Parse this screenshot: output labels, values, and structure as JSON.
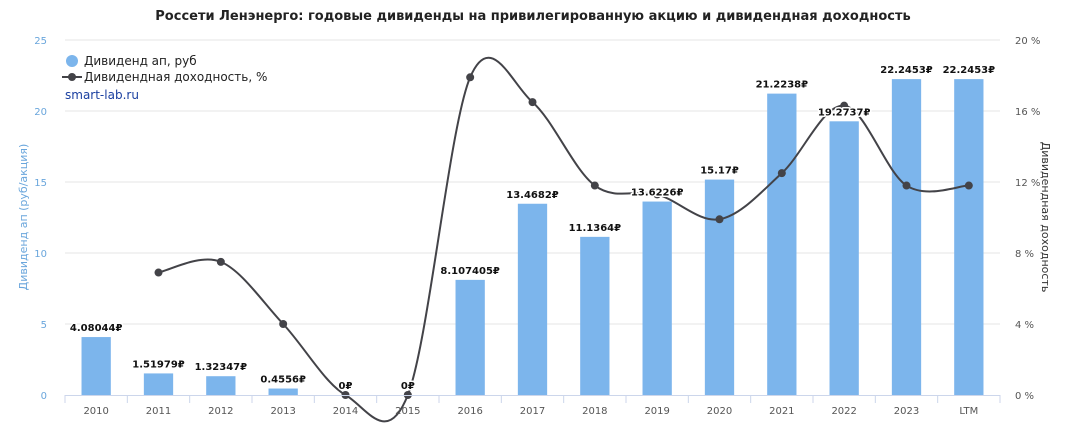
{
  "chart_data": {
    "type": "bar",
    "title": "Россети Ленэнерго: годовые дивиденды на привилегированную акцию и дивидендная доходность",
    "source_label": "smart-lab.ru",
    "categories": [
      "2010",
      "2011",
      "2012",
      "2013",
      "2014",
      "2015",
      "2016",
      "2017",
      "2018",
      "2019",
      "2020",
      "2021",
      "2022",
      "2023",
      "LTM"
    ],
    "series": [
      {
        "name": "Дивиденд ап, руб",
        "type": "bar",
        "axis": "left",
        "color": "#7cb5ec",
        "values": [
          4.08044,
          1.51979,
          1.32347,
          0.4556,
          0,
          0,
          8.107405,
          13.4682,
          11.1364,
          13.6226,
          15.17,
          21.2238,
          19.2737,
          22.2453,
          22.2453
        ],
        "labels": [
          "4.08044₽",
          "1.51979₽",
          "1.32347₽",
          "0.4556₽",
          "0₽",
          "0₽",
          "8.107405₽",
          "13.4682₽",
          "11.1364₽",
          "13.6226₽",
          "15.17₽",
          "21.2238₽",
          "19.2737₽",
          "22.2453₽",
          "22.2453₽"
        ]
      },
      {
        "name": "Дивидендная доходность, %",
        "type": "line",
        "axis": "right",
        "color": "#434348",
        "values": [
          null,
          6.9,
          7.5,
          4.0,
          0.0,
          0.0,
          17.9,
          16.5,
          11.8,
          11.3,
          9.9,
          12.5,
          16.3,
          11.8,
          11.8
        ]
      }
    ],
    "yleft": {
      "label": "Дивиденд ап (руб/акция)",
      "min": 0,
      "max": 25,
      "ticks": [
        "0",
        "5",
        "10",
        "15",
        "20",
        "25"
      ]
    },
    "yright": {
      "label": "Дивидендная доходность",
      "min": 0,
      "max": 20,
      "ticks": [
        "0 %",
        "4 %",
        "8 %",
        "12 %",
        "16 %",
        "20 %"
      ]
    },
    "grid": true,
    "legend_position": "top-left"
  }
}
